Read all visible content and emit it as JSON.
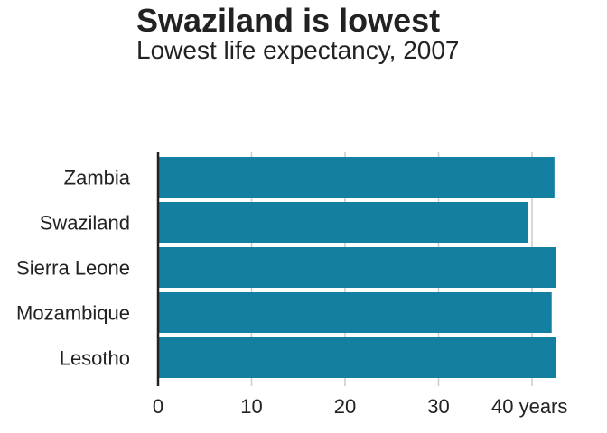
{
  "chart_data": {
    "type": "bar",
    "orientation": "horizontal",
    "title": "Swaziland is lowest",
    "subtitle": "Lowest life expectancy, 2007",
    "categories": [
      "Zambia",
      "Swaziland",
      "Sierra Leone",
      "Mozambique",
      "Lesotho"
    ],
    "values": [
      42.4,
      39.6,
      42.6,
      42.1,
      42.6
    ],
    "xlim": [
      0,
      45
    ],
    "xticks": [
      0,
      10,
      20,
      30,
      40
    ],
    "xtick_labels": [
      "0",
      "10",
      "20",
      "30",
      "40 years"
    ],
    "xlabel": "",
    "ylabel": "",
    "grid": "vertical",
    "bar_color": "#1380A1",
    "grid_color": "#cbcbcb",
    "axis_color": "#222222"
  }
}
